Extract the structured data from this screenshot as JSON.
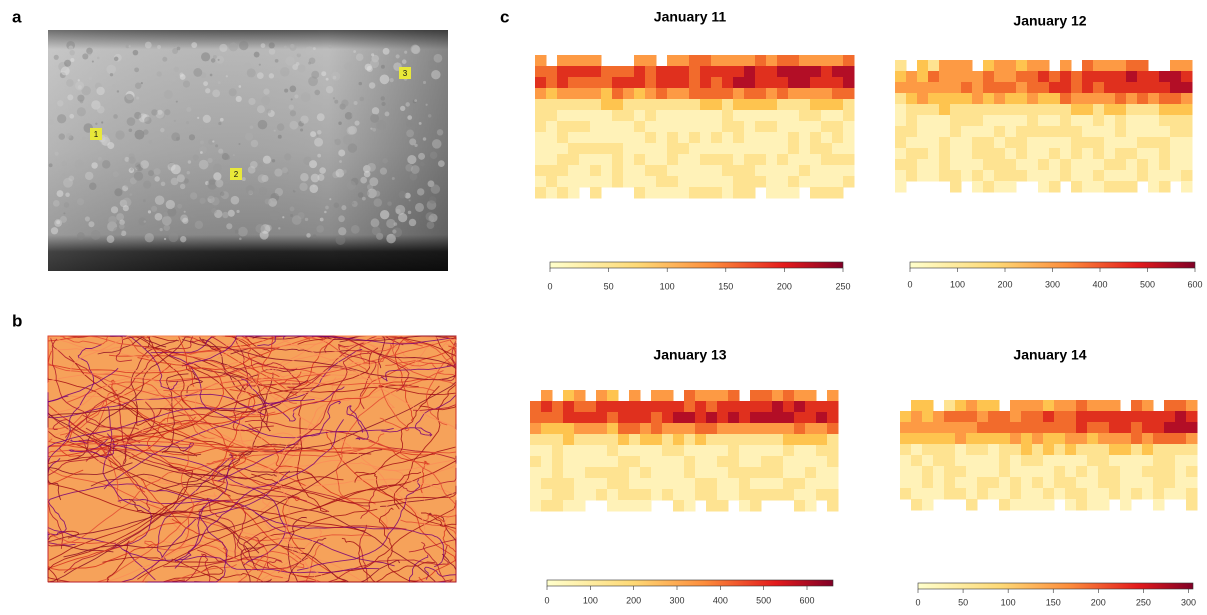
{
  "panels": {
    "a": {
      "label": "a",
      "markers": [
        "1",
        "2",
        "3"
      ]
    },
    "b": {
      "label": "b"
    },
    "c": {
      "label": "c",
      "maps": [
        {
          "title": "January 11",
          "colorbar": {
            "lim": [
              0,
              250
            ],
            "ticks": [
              0,
              50,
              100,
              150,
              200,
              250
            ]
          }
        },
        {
          "title": "January 12",
          "colorbar": {
            "lim": [
              0,
              600
            ],
            "ticks": [
              0,
              100,
              200,
              300,
              400,
              500,
              600
            ]
          }
        },
        {
          "title": "January 13",
          "colorbar": {
            "lim": [
              0,
              660
            ],
            "ticks": [
              0,
              100,
              200,
              300,
              400,
              500,
              600
            ]
          }
        },
        {
          "title": "January 14",
          "colorbar": {
            "lim": [
              0,
              305
            ],
            "ticks": [
              0,
              50,
              100,
              150,
              200,
              250,
              300
            ]
          }
        }
      ]
    }
  }
}
